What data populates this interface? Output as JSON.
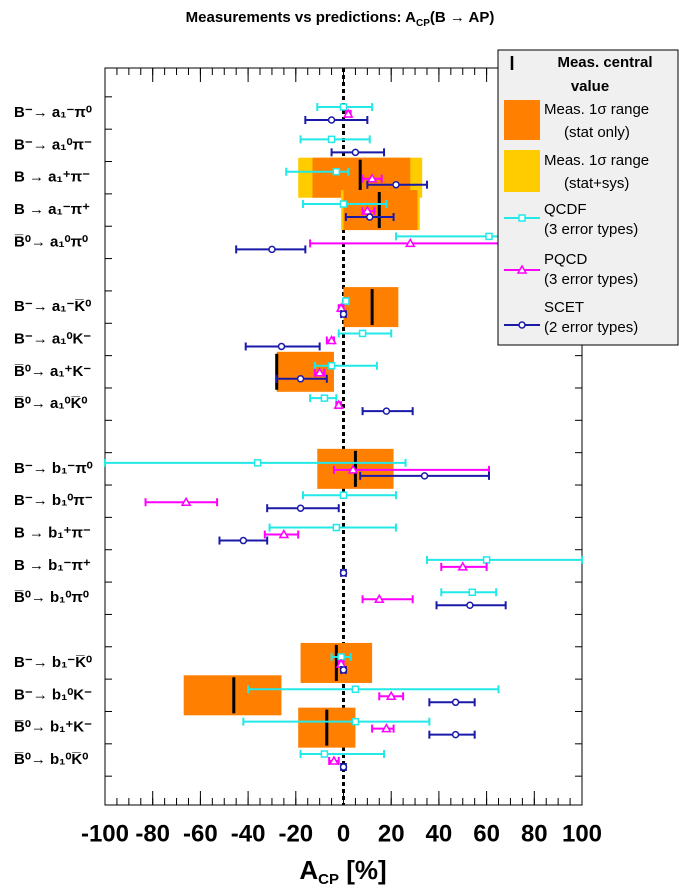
{
  "chart_data": {
    "type": "forest",
    "title": [
      "Measurements vs predictions: A",
      "CP",
      "(B → AP)"
    ],
    "xlabel": [
      "A",
      "CP",
      " [%]"
    ],
    "xlim": [
      -100,
      100
    ],
    "xticks": [
      -100,
      -80,
      -60,
      -40,
      -20,
      0,
      20,
      40,
      60,
      80,
      100
    ],
    "categories": [
      "B⁻→ a₁⁻π⁰",
      "B⁻→ a₁⁰π⁻",
      "B → a₁⁺π⁻",
      "B → a₁⁻π⁺",
      "B̅⁰→ a₁⁰π⁰",
      null,
      "B⁻→ a₁⁻K̅⁰",
      "B⁻→ a₁⁰K⁻",
      "B̅⁰→ a₁⁺K⁻",
      "B̅⁰→ a₁⁰K̅⁰",
      null,
      "B⁻→ b₁⁻π⁰",
      "B⁻→ b₁⁰π⁻",
      "B → b₁⁺π⁻",
      "B → b₁⁻π⁺",
      "B̅⁰→ b₁⁰π⁰",
      null,
      "B⁻→ b₁⁻K̅⁰",
      "B⁻→ b₁⁰K⁻",
      "B̅⁰→ b₁⁺K⁻",
      "B̅⁰→ b₁⁰K̅⁰"
    ],
    "measurement": {
      "central_name": [
        "Meas. central",
        "value"
      ],
      "stat_name": [
        "Meas. 1σ range",
        "(stat only)"
      ],
      "statsys_name": [
        "Meas. 1σ range",
        "(stat+sys)"
      ],
      "stat_color": "#ff7f00",
      "statsys_color": "#ffcc00",
      "central": [
        null,
        null,
        7,
        15,
        null,
        null,
        12,
        null,
        -28,
        null,
        null,
        5,
        null,
        null,
        null,
        null,
        null,
        -3,
        -46,
        -7,
        null
      ],
      "stat": [
        null,
        null,
        [
          -13,
          28
        ],
        [
          0,
          31
        ],
        null,
        null,
        [
          0,
          23
        ],
        null,
        [
          -28,
          -4
        ],
        null,
        null,
        [
          -11,
          21
        ],
        null,
        null,
        null,
        null,
        null,
        [
          -18,
          12
        ],
        [
          -67,
          -26
        ],
        [
          -19,
          5
        ],
        null
      ],
      "statsys": [
        null,
        null,
        [
          -19,
          33
        ],
        [
          -1,
          32
        ],
        null,
        null,
        null,
        null,
        null,
        null,
        null,
        null,
        null,
        null,
        null,
        null,
        null,
        null,
        null,
        null,
        null
      ]
    },
    "series": [
      {
        "name": [
          "QCDF",
          "(3 error types)"
        ],
        "color": "#22e8e8",
        "marker": "square",
        "values": [
          0,
          -5,
          -3,
          0,
          61,
          null,
          1,
          8,
          -5,
          -8,
          null,
          -36,
          0,
          -3,
          60,
          54,
          null,
          -1,
          5,
          5,
          -8
        ],
        "ranges": [
          [
            -11,
            12
          ],
          [
            -18,
            11
          ],
          [
            -24,
            2
          ],
          [
            -17,
            18
          ],
          [
            22,
            100
          ],
          null,
          [
            0,
            2
          ],
          [
            -2,
            20
          ],
          [
            -12,
            14
          ],
          [
            -14,
            -3
          ],
          null,
          [
            -100,
            26
          ],
          [
            -17,
            22
          ],
          [
            -31,
            22
          ],
          [
            35,
            100
          ],
          [
            41,
            64
          ],
          null,
          [
            -5,
            3
          ],
          [
            -40,
            65
          ],
          [
            -42,
            36
          ],
          [
            -18,
            17
          ]
        ]
      },
      {
        "name": [
          "PQCD",
          "(3 error types)"
        ],
        "color": "#ff00ff",
        "marker": "triangle",
        "values": [
          2,
          null,
          12,
          10,
          28,
          null,
          -1,
          -5,
          -10,
          -2,
          null,
          4,
          -66,
          -25,
          50,
          15,
          null,
          -1,
          20,
          18,
          -4
        ],
        "ranges": [
          [
            1,
            3
          ],
          null,
          [
            8,
            16
          ],
          [
            8,
            13
          ],
          [
            -14,
            100
          ],
          null,
          [
            -2,
            0
          ],
          [
            -7,
            -4
          ],
          [
            -12,
            -8
          ],
          [
            -3,
            -1
          ],
          null,
          [
            -4,
            61
          ],
          [
            -83,
            -53
          ],
          [
            -33,
            -19
          ],
          [
            41,
            60
          ],
          [
            8,
            29
          ],
          null,
          [
            -2,
            0
          ],
          [
            15,
            25
          ],
          [
            12,
            21
          ],
          [
            -6,
            -2
          ]
        ]
      },
      {
        "name": [
          "SCET",
          "(2 error types)"
        ],
        "color": "#1a1aa8",
        "marker": "circle",
        "values": [
          -5,
          5,
          22,
          11,
          -30,
          null,
          0,
          -26,
          -18,
          18,
          null,
          34,
          -18,
          -42,
          0,
          53,
          null,
          0,
          47,
          47,
          0
        ],
        "ranges": [
          [
            -16,
            10
          ],
          [
            -5,
            17
          ],
          [
            10,
            35
          ],
          [
            1,
            21
          ],
          [
            -45,
            -16
          ],
          null,
          [
            -1,
            1
          ],
          [
            -41,
            -10
          ],
          [
            -28,
            -7
          ],
          [
            8,
            29
          ],
          null,
          [
            7,
            61
          ],
          [
            -32,
            -2
          ],
          [
            -52,
            -32
          ],
          [
            -1,
            1
          ],
          [
            39,
            68
          ],
          null,
          [
            -1,
            1
          ],
          [
            36,
            55
          ],
          [
            36,
            55
          ],
          [
            -1,
            1
          ]
        ]
      }
    ]
  }
}
